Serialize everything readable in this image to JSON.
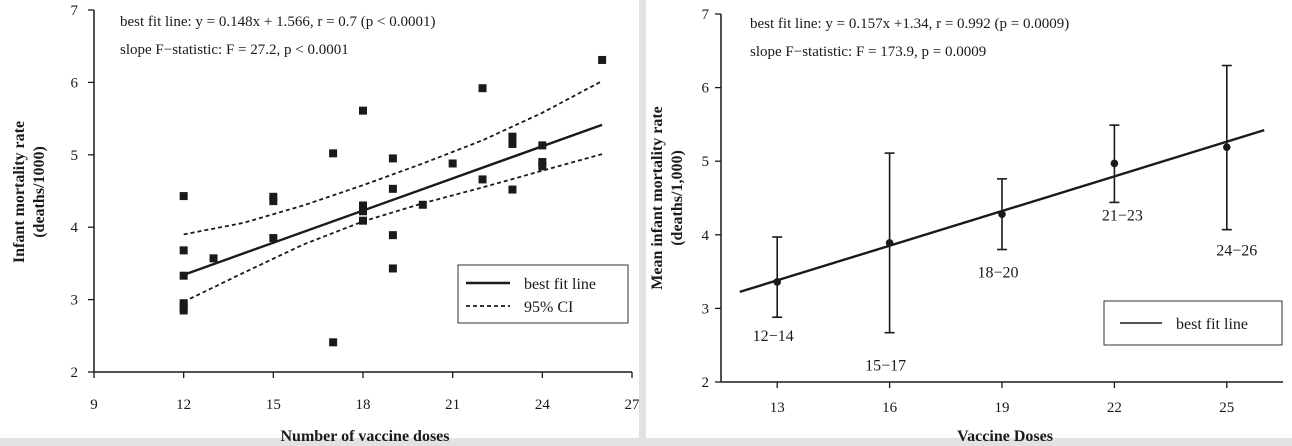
{
  "chart_data": [
    {
      "type": "scatter",
      "annotation_line1": "best fit line: y = 0.148x + 1.566, r = 0.7 (p < 0.0001)",
      "annotation_line2": "slope F−statistic: F = 27.2, p < 0.0001",
      "xlabel": "Number of vaccine doses",
      "ylabel_line1": "Infant mortality rate",
      "ylabel_line2": "(deaths/1000)",
      "xlim": [
        9,
        27
      ],
      "ylim": [
        2,
        7
      ],
      "xticks": [
        "9",
        "12",
        "15",
        "18",
        "21",
        "24",
        "27"
      ],
      "yticks": [
        "2",
        "3",
        "4",
        "5",
        "6",
        "7"
      ],
      "points": [
        {
          "x": 12,
          "y": 4.43
        },
        {
          "x": 12,
          "y": 3.68
        },
        {
          "x": 12,
          "y": 3.33
        },
        {
          "x": 12,
          "y": 2.95
        },
        {
          "x": 12,
          "y": 2.9
        },
        {
          "x": 12,
          "y": 2.85
        },
        {
          "x": 13,
          "y": 3.57
        },
        {
          "x": 15,
          "y": 4.42
        },
        {
          "x": 15,
          "y": 4.36
        },
        {
          "x": 15,
          "y": 3.85
        },
        {
          "x": 17,
          "y": 5.02
        },
        {
          "x": 17,
          "y": 2.41
        },
        {
          "x": 18,
          "y": 5.61
        },
        {
          "x": 18,
          "y": 4.3
        },
        {
          "x": 18,
          "y": 4.22
        },
        {
          "x": 18,
          "y": 4.09
        },
        {
          "x": 19,
          "y": 4.95
        },
        {
          "x": 19,
          "y": 4.53
        },
        {
          "x": 19,
          "y": 3.89
        },
        {
          "x": 19,
          "y": 3.43
        },
        {
          "x": 20,
          "y": 4.31
        },
        {
          "x": 21,
          "y": 4.88
        },
        {
          "x": 22,
          "y": 5.92
        },
        {
          "x": 22,
          "y": 4.66
        },
        {
          "x": 23,
          "y": 5.25
        },
        {
          "x": 23,
          "y": 5.15
        },
        {
          "x": 23,
          "y": 4.52
        },
        {
          "x": 24,
          "y": 5.13
        },
        {
          "x": 24,
          "y": 4.9
        },
        {
          "x": 24,
          "y": 4.84
        },
        {
          "x": 26,
          "y": 6.31
        }
      ],
      "fit": {
        "slope": 0.148,
        "intercept": 1.566,
        "x_range": [
          12,
          26
        ]
      },
      "ci_upper": [
        [
          12,
          3.9
        ],
        [
          14,
          4.06
        ],
        [
          16,
          4.3
        ],
        [
          18,
          4.58
        ],
        [
          20,
          4.88
        ],
        [
          22,
          5.2
        ],
        [
          24,
          5.58
        ],
        [
          26,
          6.02
        ]
      ],
      "ci_lower": [
        [
          12,
          2.97
        ],
        [
          14,
          3.37
        ],
        [
          16,
          3.76
        ],
        [
          18,
          4.08
        ],
        [
          20,
          4.33
        ],
        [
          22,
          4.55
        ],
        [
          24,
          4.78
        ],
        [
          26,
          5.01
        ]
      ],
      "legend": {
        "position": "lower-right",
        "fit_label": "best fit line",
        "ci_label": "95% CI"
      }
    },
    {
      "type": "line",
      "annotation_line1": "best fit line:  y = 0.157x +1.34, r = 0.992 (p = 0.0009)",
      "annotation_line2": "slope F−statistic: F = 173.9, p = 0.0009",
      "xlabel": "Vaccine Doses",
      "ylabel_line1": "Mean infant mortality rate",
      "ylabel_line2": "(deaths/1,000)",
      "xlim": [
        11.5,
        26.5
      ],
      "ylim": [
        2,
        7
      ],
      "xticks": [
        "13",
        "16",
        "19",
        "22",
        "25"
      ],
      "yticks": [
        "2",
        "3",
        "4",
        "5",
        "6",
        "7"
      ],
      "groups": [
        {
          "label": "12−14",
          "x": 13,
          "mean": 3.36,
          "low": 2.88,
          "high": 3.97
        },
        {
          "label": "15−17",
          "x": 16,
          "mean": 3.89,
          "low": 2.67,
          "high": 5.11
        },
        {
          "label": "18−20",
          "x": 19,
          "mean": 4.28,
          "low": 3.8,
          "high": 4.76
        },
        {
          "label": "21−23",
          "x": 22,
          "mean": 4.97,
          "low": 4.44,
          "high": 5.49
        },
        {
          "label": "24−26",
          "x": 25,
          "mean": 5.19,
          "low": 4.07,
          "high": 6.3
        }
      ],
      "fit": {
        "slope": 0.157,
        "intercept": 1.34,
        "x_range": [
          12,
          26
        ]
      },
      "legend": {
        "position": "lower-right",
        "fit_label": "best fit line"
      }
    }
  ]
}
